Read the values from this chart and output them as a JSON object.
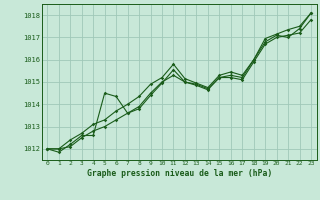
{
  "title": "Graphe pression niveau de la mer (hPa)",
  "bg_color": "#c8e8d8",
  "plot_bg_color": "#c8e8d8",
  "grid_color": "#a0c8b8",
  "line_color": "#1a5c1a",
  "marker_color": "#1a5c1a",
  "text_color": "#1a5c1a",
  "xlabel_color": "#1a5c1a",
  "xlim": [
    -0.5,
    23.5
  ],
  "ylim": [
    1011.5,
    1018.5
  ],
  "yticks": [
    1012,
    1013,
    1014,
    1015,
    1016,
    1017,
    1018
  ],
  "xticks": [
    0,
    1,
    2,
    3,
    4,
    5,
    6,
    7,
    8,
    9,
    10,
    11,
    12,
    13,
    14,
    15,
    16,
    17,
    18,
    19,
    20,
    21,
    22,
    23
  ],
  "series": [
    [
      1012.0,
      1012.0,
      1012.1,
      1012.5,
      1012.8,
      1013.0,
      1013.3,
      1013.6,
      1013.9,
      1014.5,
      1015.0,
      1015.3,
      1015.0,
      1014.9,
      1014.7,
      1015.2,
      1015.2,
      1015.1,
      1015.9,
      1016.7,
      1017.0,
      1017.1,
      1017.2,
      1017.8
    ],
    [
      1012.0,
      1011.85,
      1012.2,
      1012.6,
      1012.6,
      1014.5,
      1014.35,
      1013.6,
      1013.8,
      1014.4,
      1014.95,
      1015.55,
      1015.0,
      1014.85,
      1014.65,
      1015.2,
      1015.3,
      1015.2,
      1016.0,
      1016.8,
      1017.1,
      1017.0,
      1017.4,
      1018.1
    ],
    [
      1012.0,
      1012.0,
      1012.4,
      1012.7,
      1013.1,
      1013.3,
      1013.7,
      1014.0,
      1014.35,
      1014.9,
      1015.2,
      1015.8,
      1015.15,
      1014.95,
      1014.75,
      1015.3,
      1015.45,
      1015.3,
      1016.0,
      1016.95,
      1017.15,
      1017.35,
      1017.5,
      1018.1
    ]
  ]
}
